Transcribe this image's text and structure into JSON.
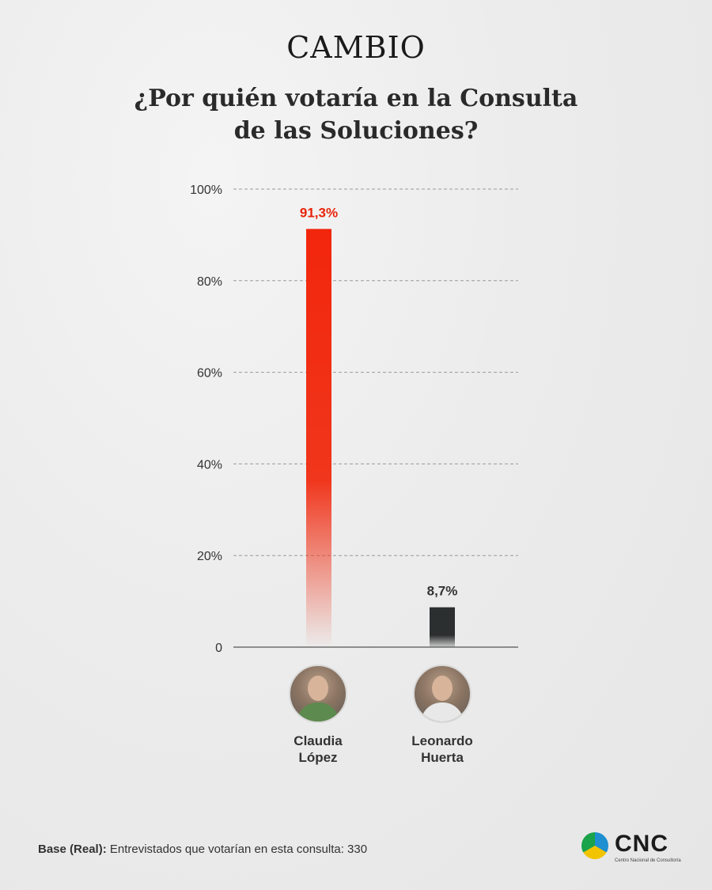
{
  "brand": "CAMBIO",
  "title": "¿Por quién votaría en la Consulta de las Soluciones?",
  "chart_data": {
    "type": "bar",
    "title": "¿Por quién votaría en la Consulta de las Soluciones?",
    "categories": [
      "Claudia López",
      "Leonardo Huerta"
    ],
    "values": [
      91.3,
      8.7
    ],
    "value_labels": [
      "91,3%",
      "8,7%"
    ],
    "yticks": [
      "0",
      "20%",
      "40%",
      "60%",
      "80%",
      "100%"
    ],
    "ylim": [
      0,
      100
    ],
    "grid": true,
    "bar_colors": [
      "#f2260c",
      "#2c2f30"
    ],
    "label_colors": [
      "#e8230a",
      "#333333"
    ]
  },
  "candidates": [
    {
      "name_line1": "Claudia",
      "name_line2": "López",
      "photo": "portrait-claudia-lopez"
    },
    {
      "name_line1": "Leonardo",
      "name_line2": "Huerta",
      "photo": "portrait-leonardo-huerta"
    }
  ],
  "footnote": {
    "label": "Base (Real):",
    "text": " Entrevistados que votarían en esta consulta: 330"
  },
  "logo": {
    "wordmark": "CNC",
    "subtitle": "Centro Nacional de Consultoría"
  }
}
